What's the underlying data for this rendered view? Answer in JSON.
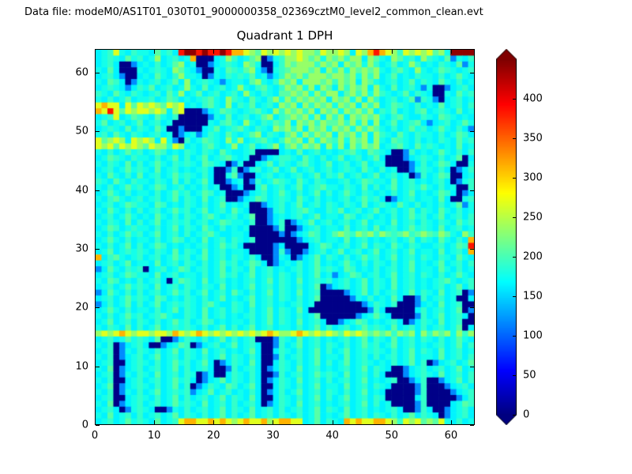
{
  "header": {
    "datafile_label": "Data file: modeM0/AS1T01_030T01_9000000358_02369cztM0_level2_common_clean.evt",
    "title": "Quadrant 1 DPH"
  },
  "chart_data": {
    "type": "heatmap",
    "title": "Quadrant 1 DPH",
    "xlabel": "",
    "ylabel": "",
    "xlim": [
      0,
      64
    ],
    "ylim": [
      0,
      64
    ],
    "x_ticks": [
      0,
      10,
      20,
      30,
      40,
      50,
      60
    ],
    "y_ticks": [
      0,
      10,
      20,
      30,
      40,
      50,
      60
    ],
    "colormap": "jet",
    "vmin": 0,
    "vmax": 450,
    "colorbar_ticks": [
      0,
      50,
      100,
      150,
      200,
      250,
      300,
      350,
      400
    ],
    "colorbar_extend": "both",
    "grid": false,
    "value_palette": {
      ".": 178,
      ",": 164,
      ":": 192,
      "-": 148,
      ";": 208,
      "g": 235,
      "y": 268,
      "o": 315,
      "r": 385,
      "R": 442,
      "b": 118,
      "B": 75,
      "0": 4
    },
    "rows_top_to_bottom": [
      ",.:y.,:..,;.:,rRRrRrrRrooyg;ygygygygg;yggyg,ygoroyg:ygygy;g.RRRR",
      ",.:.,;.:,.g,.:,.o000,.g:,.;g0b.:ggyg;g.g;g:gg,g;.,g;.:,g:.,;b.,:",
      ",.:,00b,.,:,.;g,.00b,.:.,g;.00,:g;ggg:g;g,g;g.g:,.;,.g:,.,:.,;b.",
      ".,;,000.,.:.,g;.,b00.,;:.;g,b0.:;ggg;g,g:g.g;g;g.,:;.,g.,.;:.,.:",
      ",.:,b00,.,;.,:g..,0b.,:.:.;,.b,:g;g:ggg;gg;g.g:g,.;,.,:..,:,.;.,",
      ".,;:,0b.,.:,.;,g,.:.,b,..,;g.,:g;g,ggg;g:g;g,g;.,.:,.;,:.,;.,:,.",
      ",.:.,b,:.;,.:,.g.,;,.:,.g.,:;.,:g;g.g,g;,g:g;g,g.,;,.:,b.00b,.:,",
      ":.,;.,:.,.:,;.g,.;,.:,.:,g.,:.,;;g;g.g:gg,;g:g.g:.,.;,:.,00.,;.:",
      ".,:,.;,..:,.;:,.,.:;.,g:.,;.,:g.g:g;g;g,g;g.g,g:,.:,.;b:.b0,.:,.",
      "yoyy,y;ygyg;ygy,.,:;.,g,:.;,.:,g;g,g:g;g.g;g,g:g,.;:.,:,.,;,.:,:",
      "oyry;ygyygyg,gy000b,.;:.,.:;.,g:g;g:g,g;g.g;g:g,:.;,.,:;,.:.,;,.",
      ",.:y,.;:.,;.,:00000b.,;,.:,.;g,:;g;g.g,g:g,g;g;g.,:;.,,:.,;:.,.,",
      ".;,.:,.;,.:,.000000.,:;.,g.,:.;:g,g;g:g;;g:g.g,g,.;,.:;,b,.:,.;.",
      ",.:.,;,:.,;.00b000,.;,.:;.,:.,g;g:g,g;g.g;g.g:g;.,:,.;.:,.;.,:,b",
      ".:,;.,:.,.:,.0b,.b,:.,;.,.;g,:.,;g.g:g;g,g;g.g,g:.,;.,:..,:,.;:,",
      "y;gyg,ygyg,y.b0:,.;:.,g.g,.:;.,:g;g,g.g;:g.g;g,g.,;:.,:,.,:.,;.:",
      "ygy;ygyg;ygg:yg,.,:;.,.g,.;,.:g,;g:g;g,g.g,g:g;g,.:;.,;.:.,.,;,.",
      ".,:,.;.:,.;:,.,:.,:.,;.,,.:0000,.,;,.:,.,.:;.,;:.,00b:,.,.;.,:,:",
      ",.;:.,:..,:,.;,:,.;,.:;.,.00b,.::.,;.,:,.;,.:,.;,000b,.:.,:,.;0,",
      ".,:.,;,:,.;.,:.:.,;:.,0b.00,.;,:.,:;.,.;,.:,.;,..0000b,:,.;:,00.",
      ",.:,.;.:.,;,.:,.,.:,00b:0b.:,.;,.;,.:,.:,.:.,;.,:,.00b.:.,:,0b,:",
      ".,;.,:,;,.:,.;.:.,:,00.;b00,.:,.,.:,.;,:.;,.:,.;,.:,.0b:,.;:00,.",
      ":.,;.,:..,:.,;,:,.;,00b,.0b:,.;:.,;.,:.,,.:,.;:..,;,.:,.,.:,0b.:",
      ".,:,.;.:,.;:,.:,.,:,.00b,00.;,.:,.;,.:;..,:.,;,:,.;,.:.;.,:,.00:",
      ",.;.,:,..,:,.;.:,.;:,.000b,.:,.;.,:,.;,:,.;.,:.,.,:,.;,.,.;:,0b,",
      ".,:;.,.:,.:,.;,:.,;,.:00b,.;:,.:.,;.,:,.,.:,.;.:,0b,.:,..,;,00.:",
      ",.:,.;:..,;:,.,:.,:,.;,.,.00b,.:,.;,.:,:.,:.,;,.:.,;.,:,.,:,.;b.",
      ".,;.,:,:,.:,.;.:,.;,.:,;.,000b.:,.:;.,,:.;,.:,.;,.:,.;,:.,;.,:,.",
      ",.:,.;.,.,;.,:,:.,:;.,.:,.;00b,.,.:,.;,..,;:,.:,.,:,.;.:,.;,.:,:",
      ".,:.,;,:,.;,.:.:,.:,.;:..,:00b,:0b,.;,.:,.:,.;,..,;,.:,:.,:.,;.:",
      ",.;:,.:..,:,.;,:.,;.,:,.,.0000b:00b,.:,..,;,.:,;,.:,.;.:.,;,.:,.",
      ".,:,.;.:,.;,.:,:,.:;.,,..,00000b0b,.;:,.;g;:g;g:g;:;g:;g;:g;.,g:",
      ",.;.,:,..,:,.;:,.,;,.:,:.,:0000000b,.:,..,;,.:,.,.:,.;,:.,;.,:,o",
      ".,:,.;,:,.;:,.,.,.:,.;.:,00000b,0000,.;:,.:,.;,:.,;.,:.,,.:,.;:r",
      ",.;,.:.:.,:.,;,:.,;,.:,..,0000b:b00b,.:,.;,.:,.;,.:,.;,..,;,.:,o",
      "o,:;.,.:,.:,.;.:,.;,.:,:.,:,00b.,0b,.;,:.,:,.;.:,.;,.:,:.,:.,;.,",
      ",.:,.;,..,;,.:,:.,:,.;.:,.;:,0b,.,:,.;,.,.;.,:,:.,:,.;,.,.;,.:,:",
      "b,;.,:.:0,.:,.;:,.:,.;,:.,;,.:,.,.:,.;.:.,;:,.,:,.:,.;,..,;.,:,.",
      ",.:,.;:..,;,.:,..,:,.;.:,.;,.:,:.,:,.;,.b,.;:,.:,.;,.:,:.,:,.;.,",
      ".,;:,.,:,.:,0.;:.,;,.:,.,.:,.;,:.,;,.:.:,.:,.;,:.,;,.:,.,.:;.,.:",
      ",.:,.;.:.,;,.:,:.,:.,;,.,.;,.:,:.,:,.;0b,.:,.;,:.,;,.:,.,.:,.;,:",
      "b,;.,:,:,.:,.;.:,.;,.:,;.,:,.;,:.,;,.:0000b,.;,:,.:,.;,:.,;,.:0b",
      ",.:,.;.:.,;:,.,:.,:,.;,.,.;,.:,:.,:,.;00000b.,:,.,;,00b:,.:,.00,",
      "b,:,.;,:,.;,.:.:.,:;.,,:.,;,.:,.,.:,.00000000b,:.,:000b,.,;,.:00",
      ",.;.,:,..,:,.;,:.,;,.:,:.,:,.;,:.,;,0000000000b:,00000,:,.:,.;0b",
      ".,:,.;.:,.:;.,,:.,;,.:,.,.:,.;,:.,:,.;000000b,.;.,0000b:,.;,.:,0",
      ",.;,.:,:.,:,.;.:,.;:,.,..,:,.;,:.,;,.:,00b,.;:,.,.:,0b,:.,;,.:00",
      ".,:.,;,:,.;,.:.:.,:,.;,:,.;,.:,..,:,.;,:,.:,.;.:.,;,.:,:,.:,.;0,",
      "gygyoygyygyygoygyoygygygygygyoyggyoygygyg;ygyg;g;g:g;g,g:g;g.g:g",
      ",.:,.;.:.,;00b,:.,:,.;,:,.:000b:.,;,.:,.,.:,.;,:.,;,.:,:.,:,.;.,",
      ".,:0b,.:,00b,.;:0b,.:,.;,.:,00b:,.;,.:,:.,:,.;.:,.;,.:,.,.:,.;,:",
      ",.:0b.,:.,:,.;,:.,;,.:,.,.;,00,:.,:,.;,:,.;,.:.:.,:,.;,:.,;,.:,.",
      ".,:0b,.:,.;,.:,:.,:,.;,:.,:,00b:,.:,.;,..,;,.:,:,.:,.;,..,;,.:,:",
      ",.:00,.:.,:,.;.:,.;,0b,:.,;,00,:.,:,.;,:,.;,.:.,.,:,.;,:0b,.:,.;",
      ".,;0b,.:,.:,.;,:,.:,00b:,.:,0b,:.,;,.:,.,.:,.;,:.,00b,.:,.:,.;,.",
      ",.:0b.,:.,;,.:,:.0b,00,:.,:,00b:,.:,.;.:.,;,.:,:,000b,.:.,;,.:,:",
      ".,:00,.:,.:,.;.:,0b,.;,:.,:,0b,:.,;,.:,:,.:,.;,.,.:00b,:00b,.;,:",
      ",.;0b,.:.,:,.;,:0b,:.,;:,.;,00,:.,:,.;,..,;,.:,:.,0000b:000b,.:,",
      ".,:0b.,:,.;,.:.:b,.;,.:,.,:,0b,:,.;,.:,:.,:,.;,.,00000b:0000b,.:",
      ",.:00,.:.,:,.;,:,.:,.;,:.,;,00,:.,:,.;,:,.;,.:,:.00000,:00000b,:",
      ".,;0b,.:,.:,.;.:.,;,.:,:,.:,0b,:.,;,.:,.,.:,.;,:,.0000b:0000,.;:",
      ",.:,0b.:.,00b.,:,.:,.;,:.,;,.:,:,.:,.;,:.,;,.:,.,.:,00b:,00b,.:,",
      ".,;,.:,:,.:,.;,:.,:,.;,:,.;,.:,:.,:,.;,.,.;,.:,:.,:,.;,:.,0b,.:,",
      ",.:,.;.:.,;,.:yooyyoyoygyoyyogyooyy,.;,:.,oyoyyooyg:ygy;g;y.,:,."
    ]
  }
}
